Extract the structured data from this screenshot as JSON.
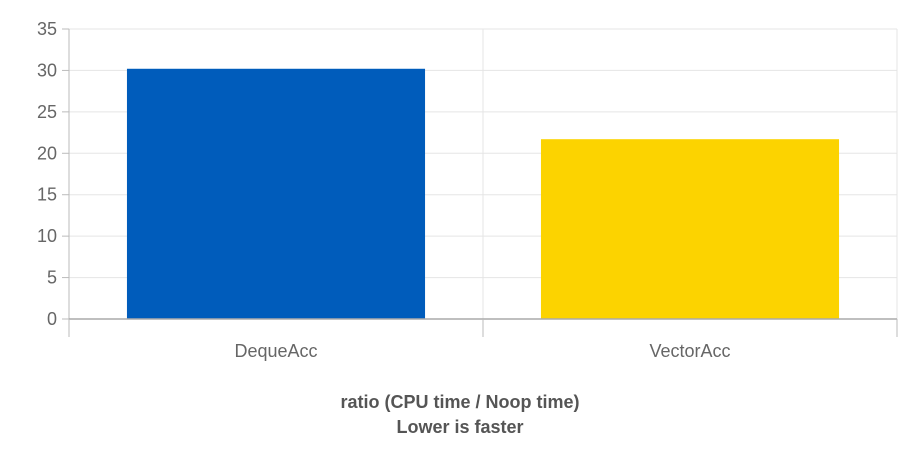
{
  "chart_data": {
    "type": "bar",
    "categories": [
      "DequeAcc",
      "VectorAcc"
    ],
    "values": [
      30.2,
      21.7
    ],
    "colors": [
      "#005cbb",
      "#fcd300"
    ],
    "ylim": [
      0,
      35
    ],
    "yticks": [
      0,
      5,
      10,
      15,
      20,
      25,
      30,
      35
    ],
    "grid": true,
    "caption_line1": "ratio (CPU time / Noop time)",
    "caption_line2": "Lower is faster"
  }
}
